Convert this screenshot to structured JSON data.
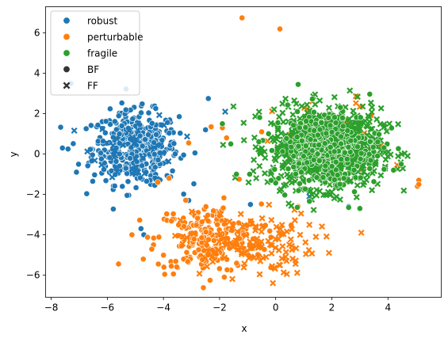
{
  "chart_data": {
    "type": "scatter",
    "title": "",
    "xlabel": "x",
    "ylabel": "y",
    "xlim": [
      -8.2,
      5.9
    ],
    "ylim": [
      -7.1,
      7.3
    ],
    "xticks": [
      -8,
      -6,
      -4,
      -2,
      0,
      2,
      4
    ],
    "yticks": [
      -6,
      -4,
      -2,
      0,
      2,
      4,
      6
    ],
    "grid": false,
    "legend_position": "top-left",
    "legend": [
      {
        "label": "robust",
        "kind": "color",
        "color": "#1f77b4"
      },
      {
        "label": "perturbable",
        "kind": "color",
        "color": "#ff7f0e"
      },
      {
        "label": "fragile",
        "kind": "color",
        "color": "#2ca02c"
      },
      {
        "label": "BF",
        "kind": "marker",
        "marker": "circle"
      },
      {
        "label": "FF",
        "kind": "marker",
        "marker": "x"
      }
    ],
    "series": [
      {
        "name": "robust",
        "color": "#1f77b4",
        "clusters": [
          {
            "marker": "circle",
            "center": [
              -5.0,
              0.3
            ],
            "spread": [
              0.9,
              1.05
            ],
            "count": 450
          },
          {
            "marker": "x",
            "center": [
              -5.0,
              0.3
            ],
            "spread": [
              0.9,
              1.0
            ],
            "count": 40
          }
        ],
        "points": [
          {
            "x": -7.3,
            "y": 3.5,
            "marker": "circle"
          },
          {
            "x": -7.6,
            "y": 0.3,
            "marker": "circle"
          },
          {
            "x": -7.4,
            "y": 0.25,
            "marker": "circle"
          },
          {
            "x": -7.1,
            "y": -0.9,
            "marker": "circle"
          },
          {
            "x": -4.8,
            "y": -3.7,
            "marker": "circle"
          },
          {
            "x": -4.7,
            "y": -4.0,
            "marker": "circle"
          },
          {
            "x": -3.1,
            "y": -2.3,
            "marker": "circle"
          },
          {
            "x": -2.4,
            "y": 2.75,
            "marker": "circle"
          },
          {
            "x": -2.5,
            "y": 1.2,
            "marker": "circle"
          },
          {
            "x": -1.8,
            "y": 2.1,
            "marker": "x"
          },
          {
            "x": -0.9,
            "y": -2.5,
            "marker": "circle"
          },
          {
            "x": 1.2,
            "y": -2.1,
            "marker": "x"
          },
          {
            "x": 2.6,
            "y": -2.6,
            "marker": "circle"
          }
        ]
      },
      {
        "name": "perturbable",
        "color": "#ff7f0e",
        "clusters": [
          {
            "marker": "circle",
            "center": [
              -2.4,
              -4.2
            ],
            "spread": [
              1.1,
              1.0
            ],
            "count": 230
          },
          {
            "marker": "x",
            "center": [
              -1.0,
              -4.4
            ],
            "spread": [
              1.4,
              0.95
            ],
            "count": 130
          },
          {
            "marker": "x",
            "center": [
              2.0,
              0.5
            ],
            "spread": [
              1.2,
              1.3
            ],
            "count": 60
          }
        ],
        "points": [
          {
            "x": -1.2,
            "y": 6.75,
            "marker": "circle"
          },
          {
            "x": 0.15,
            "y": 6.2,
            "marker": "circle"
          },
          {
            "x": -5.6,
            "y": -5.45,
            "marker": "circle"
          },
          {
            "x": 5.1,
            "y": -1.3,
            "marker": "circle"
          },
          {
            "x": 5.05,
            "y": -1.6,
            "marker": "circle"
          },
          {
            "x": 5.1,
            "y": -1.5,
            "marker": "circle"
          },
          {
            "x": 3.05,
            "y": -3.9,
            "marker": "x"
          },
          {
            "x": -0.1,
            "y": -6.4,
            "marker": "x"
          },
          {
            "x": 1.9,
            "y": -4.9,
            "marker": "x"
          },
          {
            "x": -3.8,
            "y": -1.2,
            "marker": "circle"
          },
          {
            "x": -4.2,
            "y": -1.4,
            "marker": "circle"
          },
          {
            "x": -1.75,
            "y": 0.8,
            "marker": "circle"
          },
          {
            "x": -1.9,
            "y": 1.3,
            "marker": "circle"
          },
          {
            "x": -0.5,
            "y": 1.1,
            "marker": "circle"
          },
          {
            "x": -1.3,
            "y": -1.25,
            "marker": "circle"
          },
          {
            "x": -3.1,
            "y": 0.55,
            "marker": "circle"
          },
          {
            "x": -2.3,
            "y": 1.35,
            "marker": "circle"
          },
          {
            "x": 0.8,
            "y": -2.6,
            "marker": "circle"
          },
          {
            "x": 1.5,
            "y": 1.7,
            "marker": "circle"
          },
          {
            "x": 2.9,
            "y": -0.2,
            "marker": "circle"
          },
          {
            "x": 0.4,
            "y": 0.9,
            "marker": "circle"
          },
          {
            "x": 3.4,
            "y": 1.9,
            "marker": "circle"
          }
        ]
      },
      {
        "name": "fragile",
        "color": "#2ca02c",
        "clusters": [
          {
            "marker": "x",
            "center": [
              1.8,
              0.3
            ],
            "spread": [
              1.15,
              1.15
            ],
            "count": 900
          },
          {
            "marker": "circle",
            "center": [
              1.8,
              0.3
            ],
            "spread": [
              1.15,
              1.15
            ],
            "count": 260
          }
        ],
        "points": [
          {
            "x": -1.9,
            "y": 1.5,
            "marker": "circle"
          },
          {
            "x": -1.4,
            "y": -1.0,
            "marker": "circle"
          },
          {
            "x": -1.6,
            "y": 0.5,
            "marker": "circle"
          },
          {
            "x": 4.2,
            "y": -0.8,
            "marker": "circle"
          },
          {
            "x": 4.05,
            "y": 1.5,
            "marker": "x"
          },
          {
            "x": 3.0,
            "y": -2.7,
            "marker": "circle"
          },
          {
            "x": 2.6,
            "y": -2.65,
            "marker": "circle"
          },
          {
            "x": 0.8,
            "y": 3.45,
            "marker": "circle"
          }
        ]
      }
    ]
  }
}
